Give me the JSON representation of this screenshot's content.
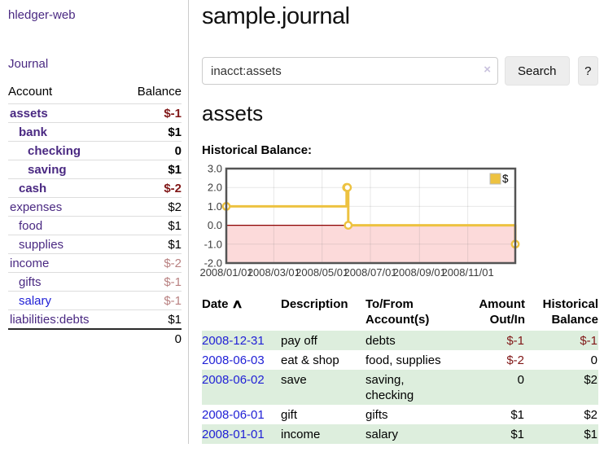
{
  "app": {
    "brand": "hledger-web",
    "nav_journal": "Journal"
  },
  "sidebar": {
    "header": {
      "account": "Account",
      "balance": "Balance"
    },
    "accounts": [
      {
        "name": "assets",
        "balance": "$-1",
        "depth": 1,
        "bold": true,
        "neg": "strong",
        "link": "purple"
      },
      {
        "name": "bank",
        "balance": "$1",
        "depth": 2,
        "bold": true,
        "neg": "none",
        "link": "purple"
      },
      {
        "name": "checking",
        "balance": "0",
        "depth": 3,
        "bold": true,
        "neg": "none",
        "link": "purple"
      },
      {
        "name": "saving",
        "balance": "$1",
        "depth": 3,
        "bold": true,
        "neg": "none",
        "link": "purple"
      },
      {
        "name": "cash",
        "balance": "$-2",
        "depth": 2,
        "bold": true,
        "neg": "strong",
        "link": "purple"
      },
      {
        "name": "expenses",
        "balance": "$2",
        "depth": 1,
        "bold": false,
        "neg": "none",
        "link": "purple"
      },
      {
        "name": "food",
        "balance": "$1",
        "depth": 2,
        "bold": false,
        "neg": "none",
        "link": "purple"
      },
      {
        "name": "supplies",
        "balance": "$1",
        "depth": 2,
        "bold": false,
        "neg": "none",
        "link": "purple"
      },
      {
        "name": "income",
        "balance": "$-2",
        "depth": 1,
        "bold": false,
        "neg": "soft",
        "link": "purple"
      },
      {
        "name": "gifts",
        "balance": "$-1",
        "depth": 2,
        "bold": false,
        "neg": "soft",
        "link": "purple"
      },
      {
        "name": "salary",
        "balance": "$-1",
        "depth": 2,
        "bold": false,
        "neg": "soft",
        "link": "blue"
      },
      {
        "name": "liabilities:debts",
        "balance": "$1",
        "depth": 1,
        "bold": false,
        "neg": "none",
        "link": "purple"
      }
    ],
    "total": "0"
  },
  "header": {
    "title": "sample.journal"
  },
  "search": {
    "value": "inacct:assets",
    "clear_icon": "×",
    "button": "Search",
    "help_button": "?"
  },
  "account_page": {
    "heading": "assets",
    "chart_label": "Historical Balance:"
  },
  "chart_data": {
    "type": "line",
    "mode": "steps",
    "title": "Historical Balance of assets",
    "series": [
      {
        "name": "$",
        "color": "#EDC240",
        "points": [
          [
            "2008/01/01",
            1
          ],
          [
            "2008/06/01",
            2
          ],
          [
            "2008/06/02",
            2
          ],
          [
            "2008/06/03",
            0
          ],
          [
            "2008/12/31",
            -1
          ]
        ]
      }
    ],
    "x_range": [
      "2008/01/01",
      "2008/12/31"
    ],
    "ylim": [
      -2,
      3
    ],
    "y_ticks": [
      3.0,
      2.0,
      1.0,
      0.0,
      -1.0,
      -2.0
    ],
    "y_tick_labels": [
      "3.0",
      "2.0",
      "1.0",
      "0.0",
      "-1.0",
      "-2.0"
    ],
    "x_ticks": [
      "2008/01/01",
      "2008/03/01",
      "2008/05/01",
      "2008/07/01",
      "2008/09/01",
      "2008/11/01"
    ],
    "grid": true,
    "legend": "$",
    "legend_position": "top-right",
    "colors": {
      "line": "#EDC240",
      "marker_fill": "#ffffff",
      "negative_region": "#fcdada",
      "zero_line": "#8b0000",
      "border": "#545454",
      "gridline": "rgba(120,120,120,0.18)",
      "tick_text": "#3c3c3c"
    }
  },
  "table": {
    "headers": {
      "date": "Date",
      "sort_icon": "∧",
      "description": "Description",
      "accounts_l1": "To/From",
      "accounts_l2": "Account(s)",
      "amount_l1": "Amount",
      "amount_l2": "Out/In",
      "balance_l1": "Historical",
      "balance_l2": "Balance"
    },
    "rows": [
      {
        "date": "2008-12-31",
        "description": "pay off",
        "accounts": "debts",
        "amount": "$-1",
        "amount_neg": true,
        "balance": "$-1",
        "balance_neg": true
      },
      {
        "date": "2008-06-03",
        "description": "eat & shop",
        "accounts": "food, supplies",
        "amount": "$-2",
        "amount_neg": true,
        "balance": "0",
        "balance_neg": false
      },
      {
        "date": "2008-06-02",
        "description": "save",
        "accounts": "saving, checking",
        "amount": "0",
        "amount_neg": false,
        "balance": "$2",
        "balance_neg": false
      },
      {
        "date": "2008-06-01",
        "description": "gift",
        "accounts": "gifts",
        "amount": "$1",
        "amount_neg": false,
        "balance": "$2",
        "balance_neg": false
      },
      {
        "date": "2008-01-01",
        "description": "income",
        "accounts": "salary",
        "amount": "$1",
        "amount_neg": false,
        "balance": "$1",
        "balance_neg": false
      }
    ]
  }
}
